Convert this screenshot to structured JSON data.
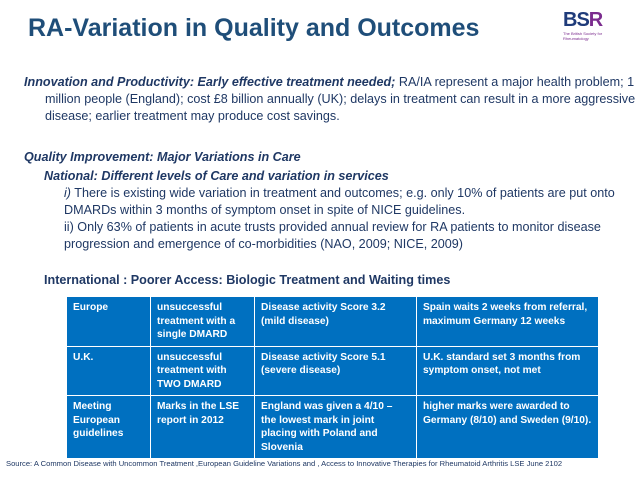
{
  "title": "RA-Variation in Quality and Outcomes",
  "logo": {
    "letters": "BSR",
    "tagline": "The British Society for Rheumatology"
  },
  "innovation": {
    "heading": "Innovation and Productivity: Early effective treatment needed;",
    "text": "RA/IA represent a major health problem; 1 million people (England); cost £8 billion annually (UK); delays  in treatment can result in a more aggressive  disease; earlier treatment may produce cost savings."
  },
  "quality": {
    "heading": "Quality Improvement: Major Variations in Care",
    "subheading": "National: Different levels of Care and variation in services",
    "point1_label": "i)",
    "point1_text": "There is existing wide variation in treatment and outcomes; e.g. only 10% of patients are put onto DMARDs within 3 months of symptom onset in spite of NICE guidelines.",
    "point2_text": "ii) Only 63% of patients in acute trusts provided annual review for RA patients to monitor disease progression and emergence of co-morbidities (NAO, 2009; NICE, 2009)"
  },
  "international": {
    "heading": "International : Poorer Access: Biologic Treatment and Waiting times"
  },
  "table": {
    "rows": [
      {
        "region": "Europe",
        "treatment": "unsuccessful treatment with a single DMARD",
        "score": "Disease activity Score 3.2 (mild disease)",
        "waiting": "Spain waits 2 weeks from referral, maximum Germany 12 weeks"
      },
      {
        "region": "U.K.",
        "treatment": "unsuccessful treatment with TWO DMARD",
        "score": "Disease activity Score 5.1 (severe disease)",
        "waiting": "U.K. standard set 3 months from symptom onset, not met"
      },
      {
        "region": "Meeting European guidelines",
        "treatment": "Marks in the LSE report in 2012",
        "score": "England was given a 4/10 – the lowest mark in joint placing with Poland and Slovenia",
        "waiting": "higher marks were awarded to Germany (8/10) and Sweden (9/10)."
      }
    ]
  },
  "source": "Source: A Common Disease with Uncommon Treatment ,European Guideline Variations and , Access to  Innovative Therapies for Rheumatoid Arthritis LSE June 2102"
}
